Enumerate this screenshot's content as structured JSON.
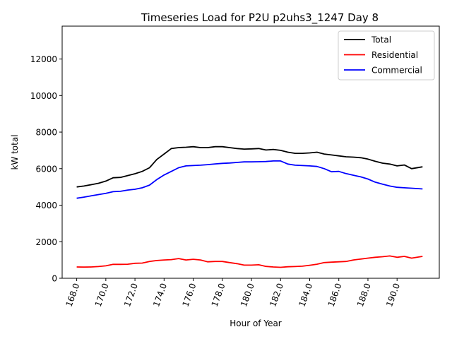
{
  "chart_data": {
    "type": "line",
    "title": "Timeseries Load for P2U p2uhs3_1247  Day 8",
    "xlabel": "Hour of Year",
    "ylabel": "kW total",
    "xlim": [
      167.0,
      192.9
    ],
    "ylim": [
      0,
      13800
    ],
    "xticks": [
      168,
      170,
      172,
      174,
      176,
      178,
      180,
      182,
      184,
      186,
      188,
      190
    ],
    "xtick_labels": [
      "168.0",
      "170.0",
      "172.0",
      "174.0",
      "176.0",
      "178.0",
      "180.0",
      "182.0",
      "184.0",
      "186.0",
      "188.0",
      "190.0"
    ],
    "yticks": [
      0,
      2000,
      4000,
      6000,
      8000,
      10000,
      12000
    ],
    "ytick_labels": [
      "0",
      "2000",
      "4000",
      "6000",
      "8000",
      "10000",
      "12000"
    ],
    "grid": false,
    "legend_position": "top-right",
    "series": [
      {
        "name": "Total",
        "color": "#000000",
        "x": [
          168.0,
          168.5,
          169.0,
          169.5,
          170.0,
          170.5,
          171.0,
          171.5,
          172.0,
          172.5,
          173.0,
          173.5,
          174.0,
          174.5,
          175.0,
          175.5,
          176.0,
          176.5,
          177.0,
          177.5,
          178.0,
          178.5,
          179.0,
          179.5,
          180.0,
          180.5,
          181.0,
          181.5,
          182.0,
          182.5,
          183.0,
          183.5,
          184.0,
          184.5,
          185.0,
          185.5,
          186.0,
          186.5,
          187.0,
          187.5,
          188.0,
          188.5,
          189.0,
          189.5,
          190.0,
          190.5,
          191.0,
          191.75
        ],
        "values": [
          5000,
          5050,
          5120,
          5200,
          5320,
          5500,
          5520,
          5620,
          5720,
          5850,
          6050,
          6500,
          6800,
          7100,
          7150,
          7170,
          7200,
          7150,
          7150,
          7200,
          7200,
          7150,
          7100,
          7070,
          7080,
          7100,
          7020,
          7050,
          7000,
          6900,
          6840,
          6840,
          6860,
          6900,
          6800,
          6750,
          6700,
          6650,
          6630,
          6600,
          6520,
          6400,
          6300,
          6250,
          6150,
          6200,
          6000,
          6100
        ]
      },
      {
        "name": "Residential",
        "color": "#ff0000",
        "x": [
          168.0,
          168.5,
          169.0,
          169.5,
          170.0,
          170.5,
          171.0,
          171.5,
          172.0,
          172.5,
          173.0,
          173.5,
          174.0,
          174.5,
          175.0,
          175.5,
          176.0,
          176.5,
          177.0,
          177.5,
          178.0,
          178.5,
          179.0,
          179.5,
          180.0,
          180.5,
          181.0,
          181.5,
          182.0,
          182.5,
          183.0,
          183.5,
          184.0,
          184.5,
          185.0,
          185.5,
          186.0,
          186.5,
          187.0,
          187.5,
          188.0,
          188.5,
          189.0,
          189.5,
          190.0,
          190.5,
          191.0,
          191.75
        ],
        "values": [
          620,
          610,
          620,
          640,
          680,
          760,
          760,
          770,
          820,
          830,
          920,
          970,
          1000,
          1020,
          1080,
          1000,
          1040,
          1000,
          900,
          920,
          920,
          860,
          800,
          720,
          720,
          740,
          650,
          620,
          600,
          630,
          640,
          660,
          710,
          770,
          860,
          880,
          900,
          920,
          1000,
          1050,
          1100,
          1150,
          1180,
          1220,
          1150,
          1200,
          1100,
          1200
        ]
      },
      {
        "name": "Commercial",
        "color": "#0000ff",
        "x": [
          168.0,
          168.5,
          169.0,
          169.5,
          170.0,
          170.5,
          171.0,
          171.5,
          172.0,
          172.5,
          173.0,
          173.5,
          174.0,
          174.5,
          175.0,
          175.5,
          176.0,
          176.5,
          177.0,
          177.5,
          178.0,
          178.5,
          179.0,
          179.5,
          180.0,
          180.5,
          181.0,
          181.5,
          182.0,
          182.5,
          183.0,
          183.5,
          184.0,
          184.5,
          185.0,
          185.5,
          186.0,
          186.5,
          187.0,
          187.5,
          188.0,
          188.5,
          189.0,
          189.5,
          190.0,
          190.5,
          191.0,
          191.75
        ],
        "values": [
          4380,
          4440,
          4510,
          4580,
          4650,
          4740,
          4760,
          4830,
          4870,
          4950,
          5100,
          5400,
          5650,
          5850,
          6050,
          6150,
          6170,
          6190,
          6220,
          6260,
          6290,
          6310,
          6340,
          6370,
          6370,
          6380,
          6390,
          6420,
          6420,
          6250,
          6190,
          6170,
          6150,
          6120,
          6000,
          5830,
          5850,
          5730,
          5640,
          5550,
          5430,
          5260,
          5150,
          5050,
          4980,
          4950,
          4930,
          4890
        ]
      }
    ]
  }
}
